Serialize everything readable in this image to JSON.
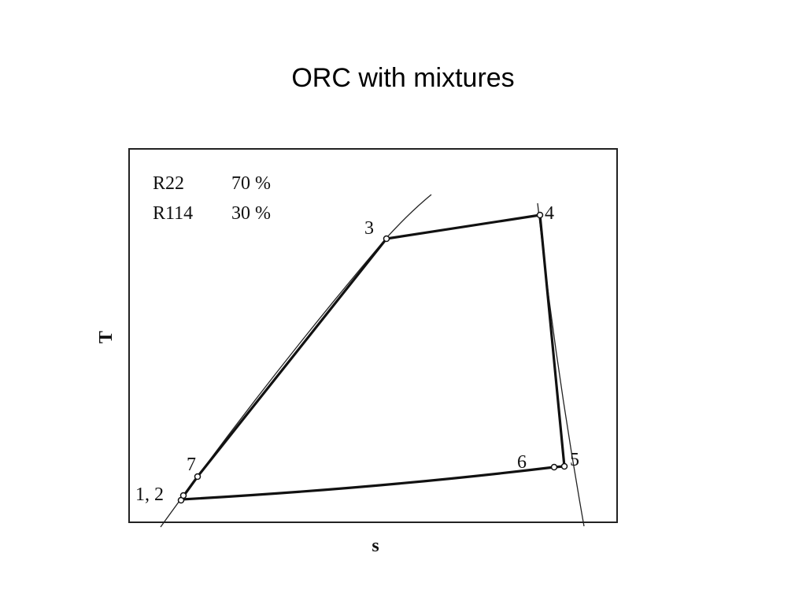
{
  "title": "ORC with mixtures",
  "diagram": {
    "y_axis_label": "T",
    "x_axis_label": "s",
    "legend": [
      {
        "fluid": "R22",
        "share": "70 %"
      },
      {
        "fluid": "R114",
        "share": "30 %"
      }
    ],
    "points": [
      "1, 2",
      "3",
      "4",
      "5",
      "6",
      "7"
    ]
  }
}
